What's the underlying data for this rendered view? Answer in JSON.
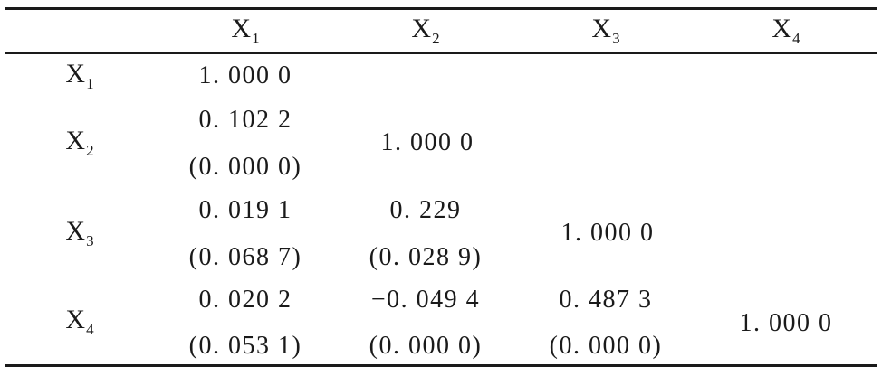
{
  "columns": [
    {
      "letter": "X",
      "sub": "1"
    },
    {
      "letter": "X",
      "sub": "2"
    },
    {
      "letter": "X",
      "sub": "3"
    },
    {
      "letter": "X",
      "sub": "4"
    }
  ],
  "rows": [
    {
      "letter": "X",
      "sub": "1"
    },
    {
      "letter": "X",
      "sub": "2"
    },
    {
      "letter": "X",
      "sub": "3"
    },
    {
      "letter": "X",
      "sub": "4"
    }
  ],
  "cells": {
    "r1c1": "1. 000 0",
    "r2c1_coef": "0. 102 2",
    "r2c1_p": "(0. 000 0)",
    "r2c2": "1. 000 0",
    "r3c1_coef": "0. 019 1",
    "r3c1_p": "(0. 068 7)",
    "r3c2_coef": "0. 229",
    "r3c2_p": "(0. 028 9)",
    "r3c3": "1. 000 0",
    "r4c1_coef": "0. 020 2",
    "r4c1_p": "(0. 053 1)",
    "r4c2_coef": "−0. 049 4",
    "r4c2_p": "(0. 000 0)",
    "r4c3_coef": "0. 487 3",
    "r4c3_p": "(0. 000 0)",
    "r4c4": "1. 000 0"
  }
}
